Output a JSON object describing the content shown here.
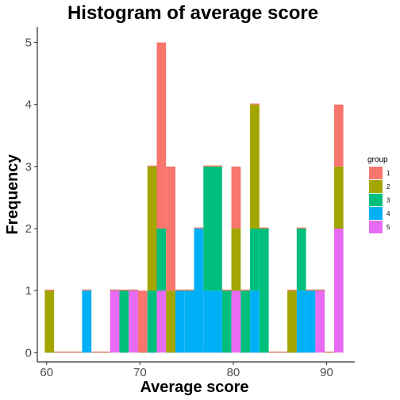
{
  "chart_data": {
    "type": "bar",
    "title": "Histogram of average score",
    "xlabel": "Average score",
    "ylabel": "Frequency",
    "stacked": true,
    "xlim": [
      59,
      92
    ],
    "ylim": [
      -0.15,
      5.25
    ],
    "xticks": [
      60,
      70,
      80,
      90
    ],
    "yticks": [
      0,
      1,
      2,
      3,
      4,
      5
    ],
    "bin_centers": [
      60.3,
      61.3,
      62.3,
      63.3,
      64.3,
      65.3,
      66.3,
      67.3,
      68.3,
      69.3,
      70.3,
      71.3,
      72.3,
      73.3,
      74.3,
      75.3,
      76.3,
      77.3,
      78.3,
      79.3,
      80.3,
      81.3,
      82.3,
      83.3,
      84.3,
      85.3,
      86.3,
      87.3,
      88.3,
      89.3,
      90.3,
      91.3
    ],
    "series": [
      {
        "name": "1",
        "color": "#F8766D",
        "values": [
          0,
          0,
          0,
          0,
          0,
          0,
          0,
          0,
          0,
          0,
          1,
          0,
          3,
          2,
          0,
          0,
          0,
          0,
          0,
          0,
          1,
          0,
          0,
          0,
          0,
          0,
          0,
          0,
          0,
          0,
          0,
          1
        ]
      },
      {
        "name": "2",
        "color": "#A3A500",
        "values": [
          1,
          0,
          0,
          0,
          0,
          0,
          0,
          0,
          0,
          0,
          0,
          2,
          0,
          1,
          0,
          0,
          0,
          0,
          0,
          0,
          1,
          0,
          2,
          0,
          0,
          0,
          1,
          0,
          0,
          0,
          0,
          1
        ]
      },
      {
        "name": "3",
        "color": "#00BF7D",
        "values": [
          0,
          0,
          0,
          0,
          0,
          0,
          0,
          0,
          1,
          0,
          0,
          1,
          1,
          0,
          0,
          0,
          0,
          2,
          2,
          1,
          0,
          1,
          1,
          2,
          0,
          0,
          0,
          1,
          0,
          0,
          0,
          0
        ]
      },
      {
        "name": "4",
        "color": "#00B0F6",
        "values": [
          0,
          0,
          0,
          0,
          1,
          0,
          0,
          0,
          0,
          0,
          0,
          0,
          0,
          0,
          1,
          1,
          2,
          1,
          1,
          0,
          0,
          0,
          1,
          0,
          0,
          0,
          0,
          1,
          1,
          0,
          0,
          0
        ]
      },
      {
        "name": "5",
        "color": "#E76BF3",
        "values": [
          0,
          0,
          0,
          0,
          0,
          0,
          0,
          1,
          0,
          1,
          0,
          0,
          1,
          0,
          0,
          0,
          0,
          0,
          0,
          0,
          1,
          0,
          0,
          0,
          0,
          0,
          0,
          0,
          0,
          1,
          0,
          2
        ]
      }
    ],
    "legend": {
      "title": "group",
      "position": "right"
    },
    "grid": false
  }
}
